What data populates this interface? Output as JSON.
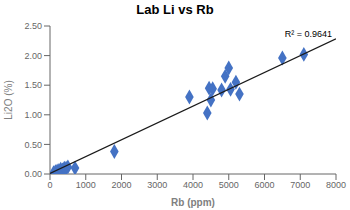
{
  "chart_data": {
    "type": "scatter",
    "title": "Lab Li vs Rb",
    "xlabel": "Rb (ppm)",
    "ylabel": "Li2O (%)",
    "annotation": "R² = 0.9641",
    "series": [
      {
        "type": "scatter",
        "color": "#4472C4",
        "marker": "diamond",
        "x": [
          100,
          150,
          200,
          250,
          300,
          350,
          400,
          450,
          500,
          700,
          1800,
          3900,
          4400,
          4450,
          4500,
          4550,
          4800,
          4900,
          5000,
          5050,
          5200,
          5300,
          6500,
          7100
        ],
        "values": [
          0.02,
          0.04,
          0.05,
          0.06,
          0.08,
          0.07,
          0.1,
          0.1,
          0.12,
          0.1,
          0.38,
          1.3,
          1.03,
          1.45,
          1.25,
          1.44,
          1.42,
          1.65,
          1.79,
          1.43,
          1.55,
          1.35,
          1.96,
          2.02
        ]
      },
      {
        "type": "line",
        "color": "#1a1a1a",
        "x": [
          0,
          8000
        ],
        "values": [
          0.01,
          2.282
        ]
      }
    ],
    "xlim": [
      0,
      8000
    ],
    "ylim": [
      0,
      2.5
    ],
    "xticks": [
      0,
      1000,
      2000,
      3000,
      4000,
      5000,
      6000,
      7000,
      8000
    ],
    "yticks": [
      {
        "value": 0,
        "label": "0.00"
      },
      {
        "value": 0.5,
        "label": "0.50"
      },
      {
        "value": 1,
        "label": "1.00"
      },
      {
        "value": 1.5,
        "label": "1.50"
      },
      {
        "value": 2,
        "label": "2.00"
      },
      {
        "value": 2.5,
        "label": "2.50"
      }
    ],
    "grid": false
  }
}
